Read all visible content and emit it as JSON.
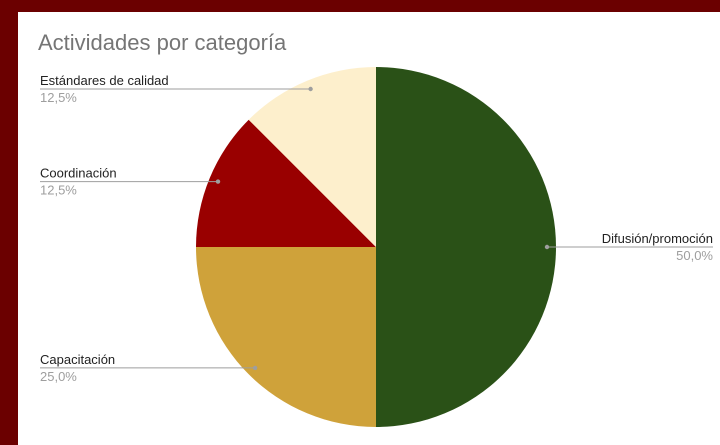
{
  "chart_data": {
    "type": "pie",
    "title": "Actividades por categoría",
    "slices": [
      {
        "label": "Difusión/promoción",
        "value": 50.0,
        "percent_label": "50,0%",
        "color": "#2a5117"
      },
      {
        "label": "Capacitación",
        "value": 25.0,
        "percent_label": "25,0%",
        "color": "#cfa23a"
      },
      {
        "label": "Coordinación",
        "value": 12.5,
        "percent_label": "12,5%",
        "color": "#990000"
      },
      {
        "label": "Estándares de calidad",
        "value": 12.5,
        "percent_label": "12,5%",
        "color": "#fdefcc"
      }
    ],
    "legend": "none"
  },
  "colors": {
    "frame": "#6b0000",
    "background": "#ffffff"
  }
}
